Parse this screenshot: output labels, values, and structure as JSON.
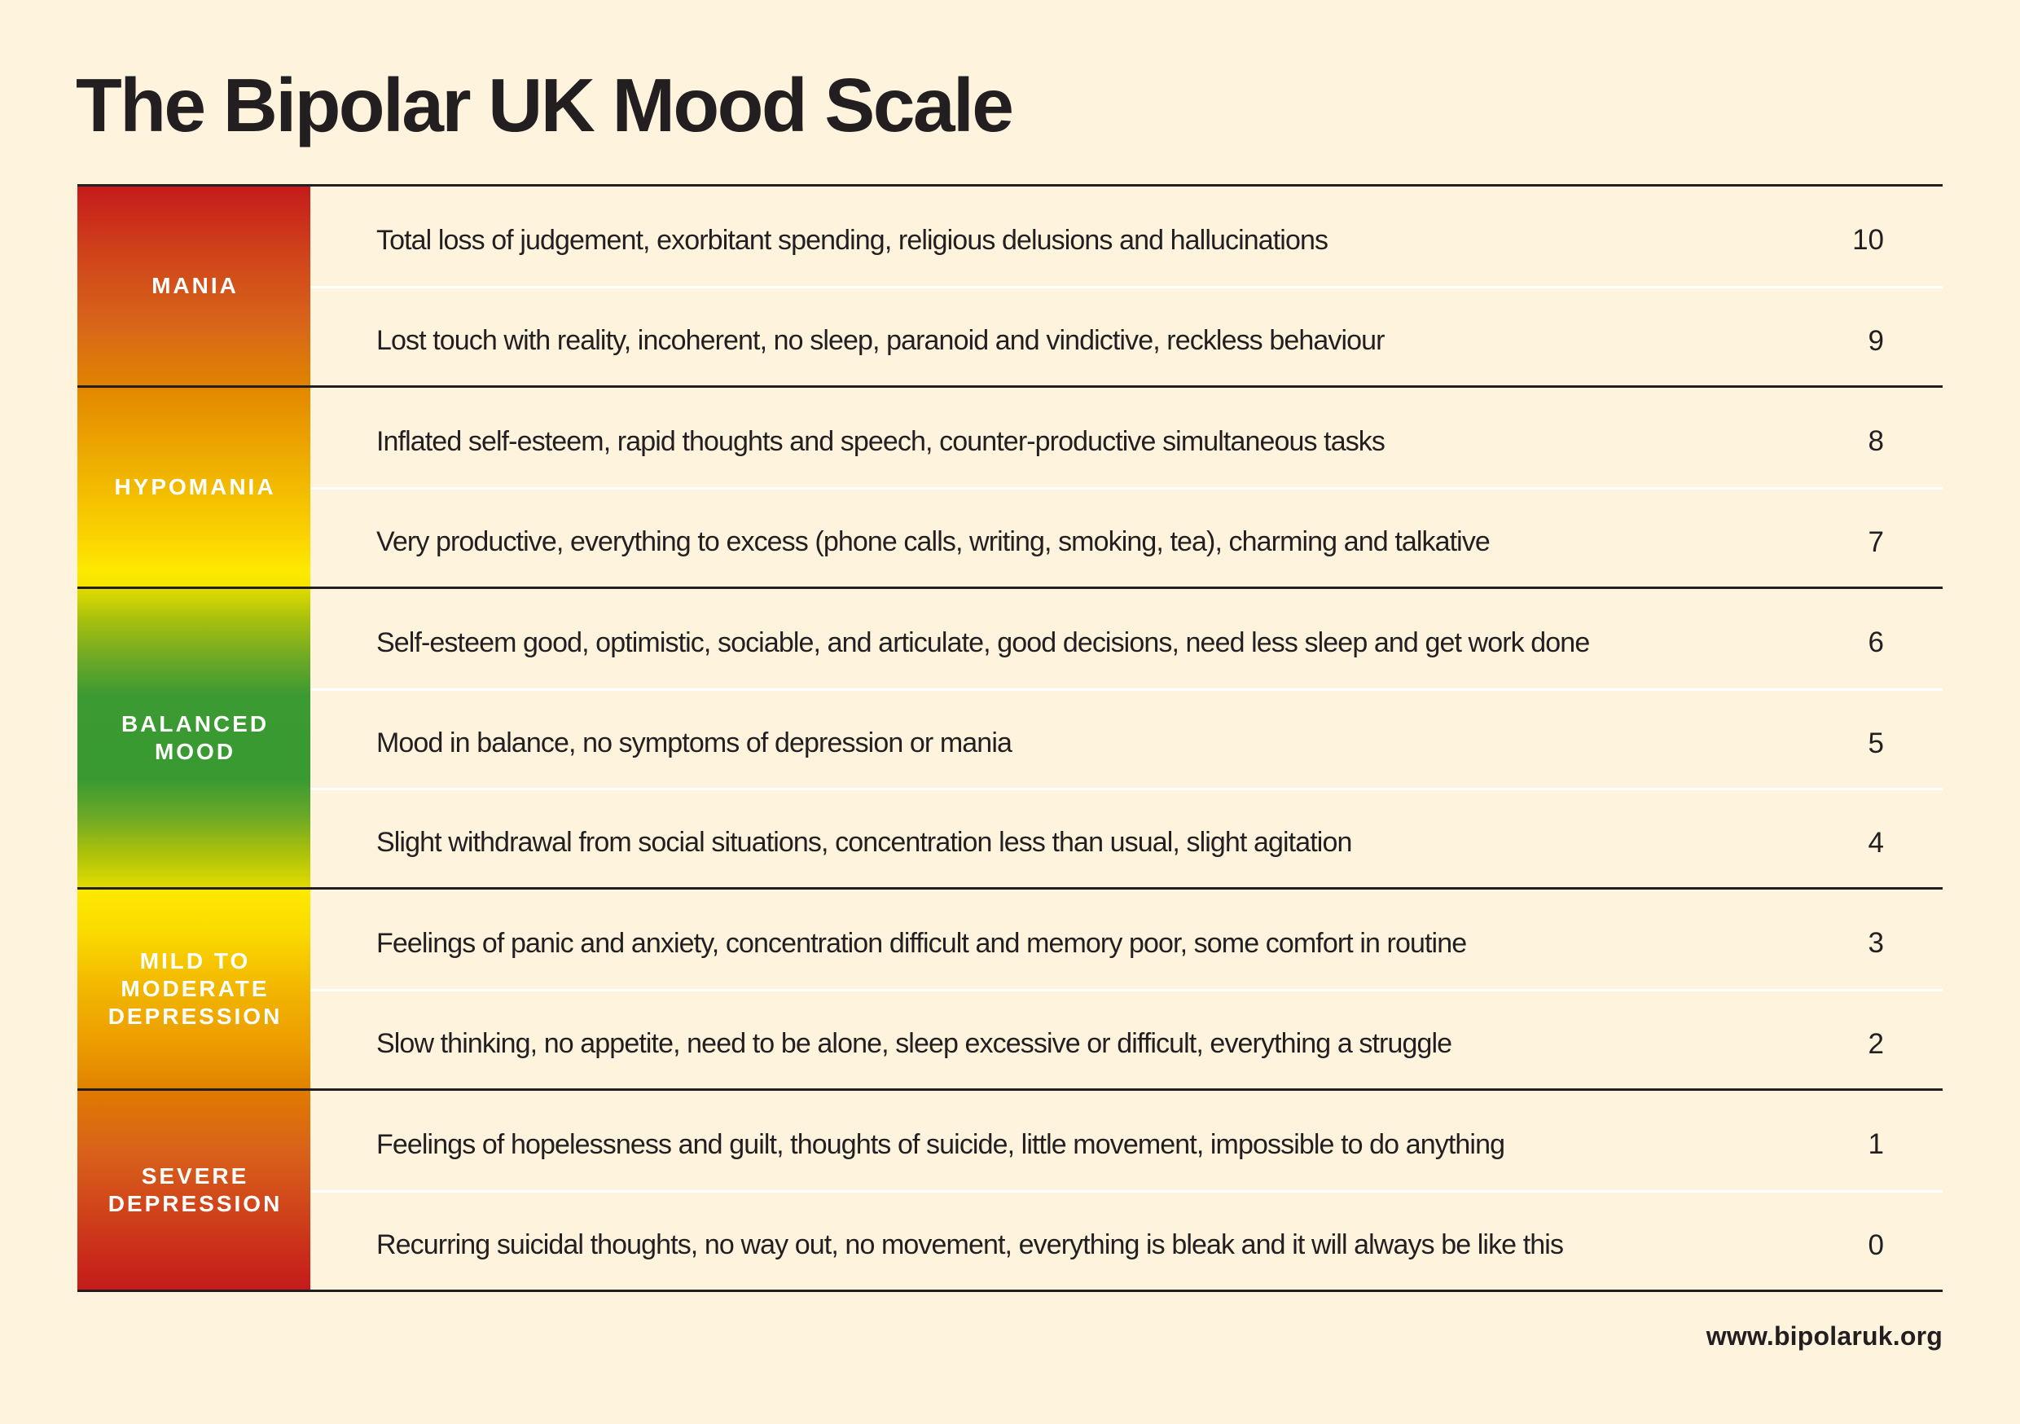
{
  "title": "The Bipolar UK Mood Scale",
  "colors": {
    "background": "#fef4de",
    "text": "#231f20",
    "mania": "#c51b1b",
    "hypomania": "#fde900",
    "balanced": "#3a9a32",
    "mild_to_moderate_depression": "#ec9a00",
    "severe_depression": "#c51b1b"
  },
  "sections": [
    {
      "label": "MANIA",
      "rows": [
        {
          "description": "Total loss of judgement, exorbitant spending, religious delusions and hallucinations",
          "score": "10"
        },
        {
          "description": "Lost touch with reality, incoherent, no sleep, paranoid and vindictive, reckless behaviour",
          "score": "9"
        }
      ]
    },
    {
      "label": "HYPOMANIA",
      "rows": [
        {
          "description": "Inflated self-esteem, rapid thoughts and speech, counter-productive simultaneous tasks",
          "score": "8"
        },
        {
          "description": "Very productive, everything to excess (phone calls, writing, smoking, tea), charming and talkative",
          "score": "7"
        }
      ]
    },
    {
      "label": "BALANCED MOOD",
      "label_lines": [
        "BALANCED",
        "MOOD"
      ],
      "rows": [
        {
          "description": "Self-esteem good, optimistic, sociable, and articulate, good decisions, need less sleep and get work done",
          "score": "6"
        },
        {
          "description": "Mood in balance, no symptoms of depression or mania",
          "score": "5"
        },
        {
          "description": "Slight withdrawal from social situations, concentration less than usual, slight agitation",
          "score": "4"
        }
      ]
    },
    {
      "label": "MILD TO MODERATE DEPRESSION",
      "label_lines": [
        "MILD TO",
        "MODERATE",
        "DEPRESSION"
      ],
      "rows": [
        {
          "description": "Feelings of panic and anxiety, concentration difficult and memory poor, some comfort in routine",
          "score": "3"
        },
        {
          "description": "Slow thinking, no appetite, need to be alone, sleep excessive or difficult, everything a struggle",
          "score": "2"
        }
      ]
    },
    {
      "label": "SEVERE DEPRESSION",
      "label_lines": [
        "SEVERE",
        "DEPRESSION"
      ],
      "rows": [
        {
          "description": "Feelings of hopelessness and guilt, thoughts of suicide, little movement, impossible to do anything",
          "score": "1"
        },
        {
          "description": "Recurring suicidal thoughts, no way out, no movement, everything is bleak and it will always be like this",
          "score": "0"
        }
      ]
    }
  ],
  "footer": {
    "url": "www.bipolaruk.org"
  }
}
